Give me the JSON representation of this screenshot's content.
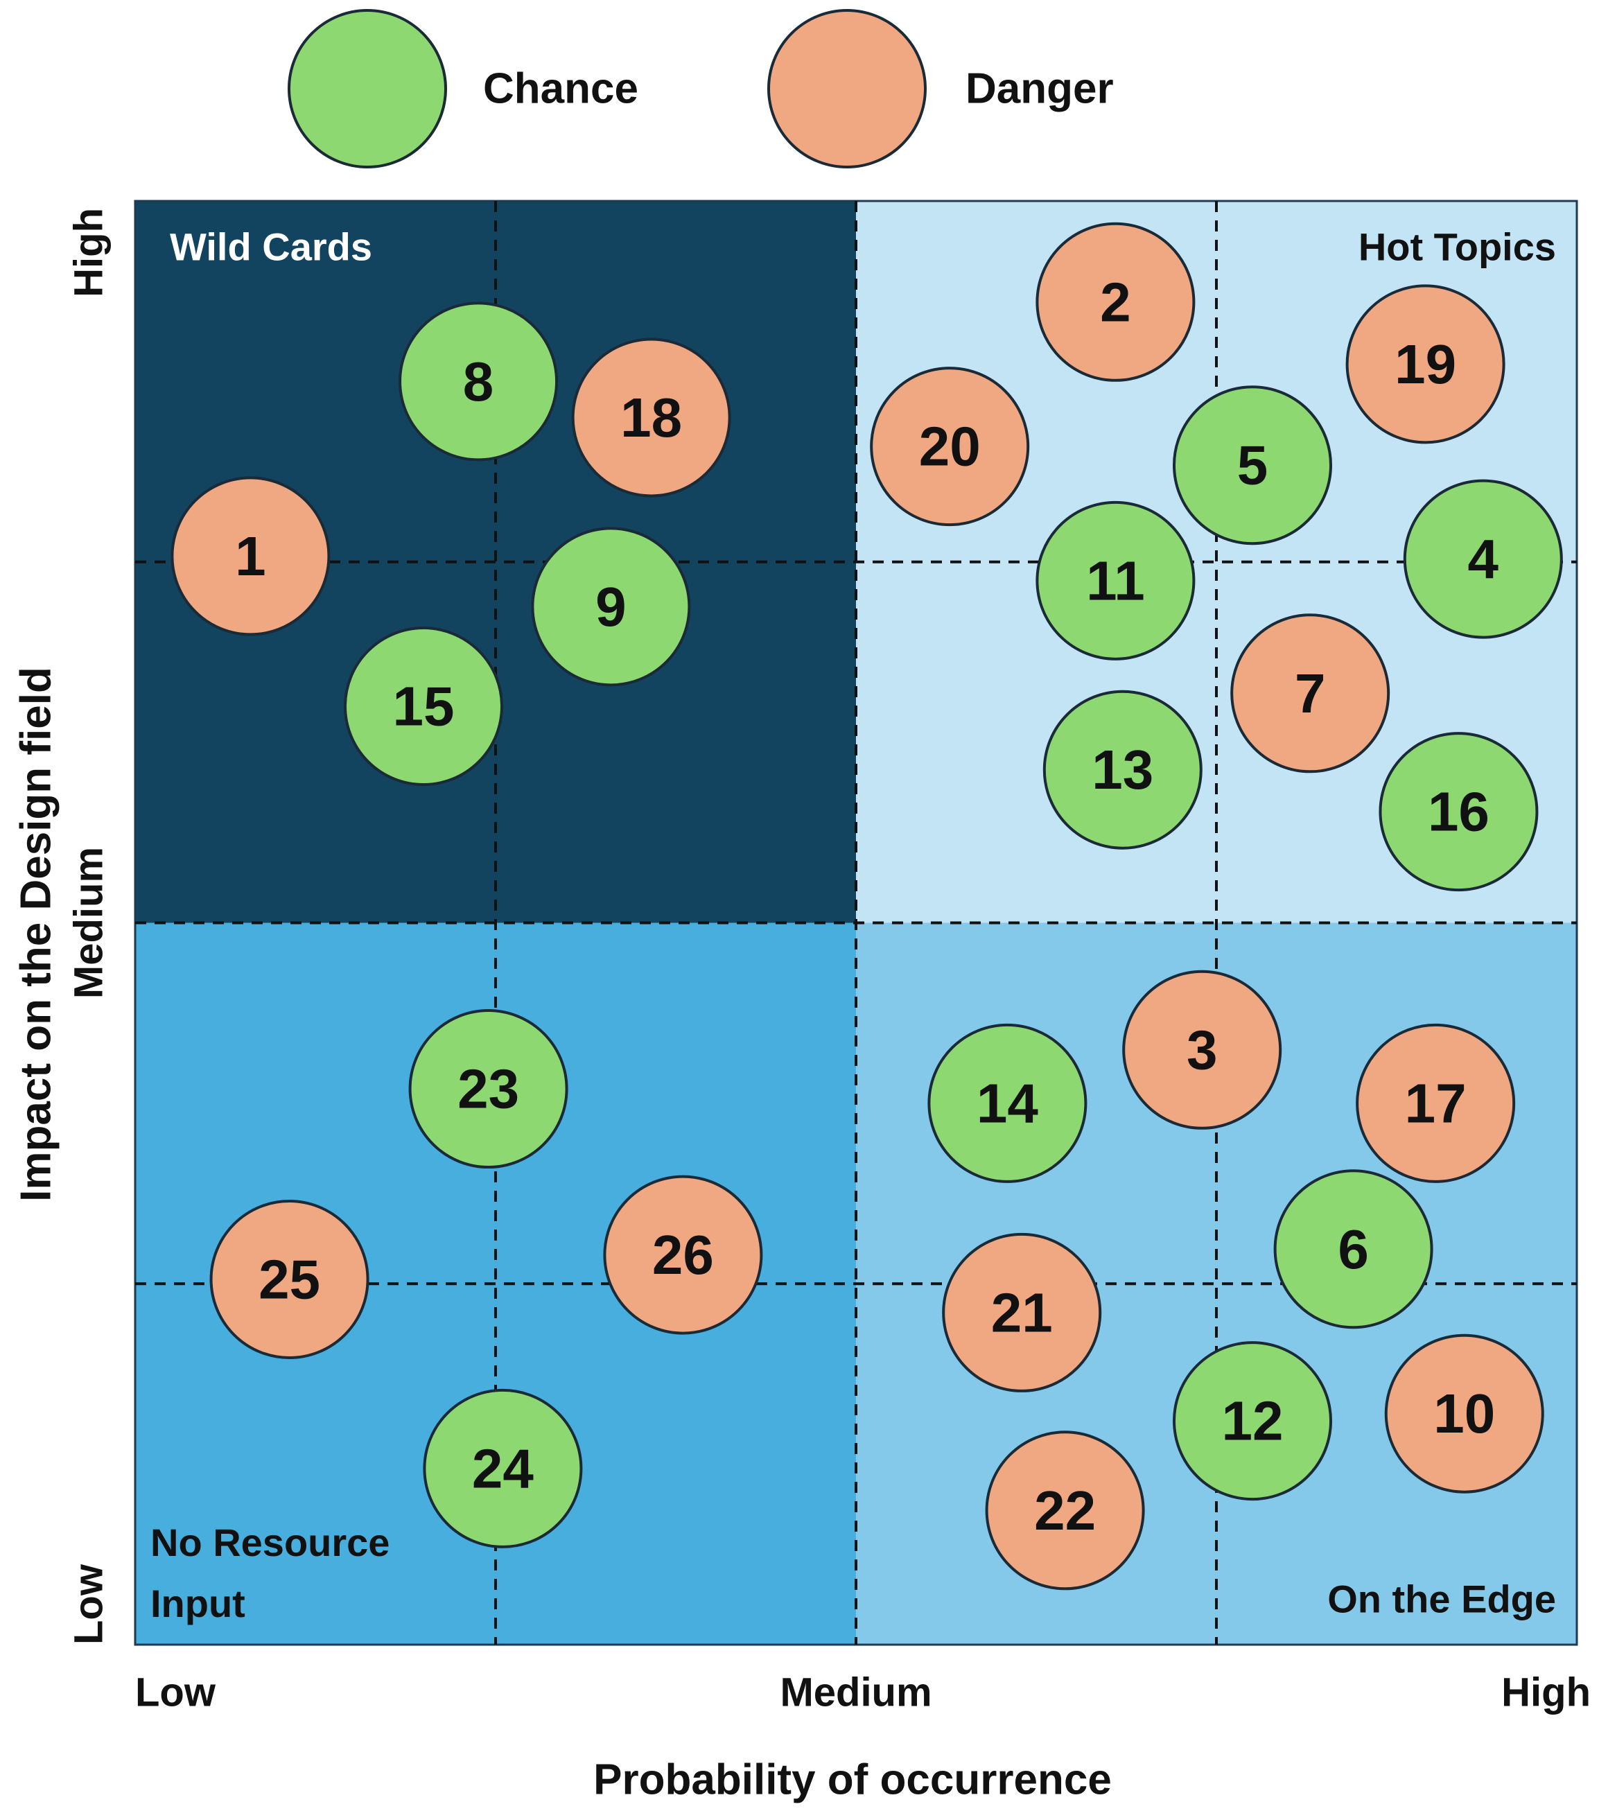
{
  "chart_data": {
    "type": "scatter",
    "xlabel": "Probability of occurrence",
    "ylabel": "Impact on the Design field",
    "xlim": [
      0,
      1
    ],
    "ylim": [
      0,
      1
    ],
    "x_ticks": [
      {
        "value": 0.0,
        "label": "Low"
      },
      {
        "value": 0.5,
        "label": "Medium"
      },
      {
        "value": 1.0,
        "label": "High"
      }
    ],
    "y_ticks": [
      {
        "value": 0.0,
        "label": "Low"
      },
      {
        "value": 0.5,
        "label": "Medium"
      },
      {
        "value": 1.0,
        "label": "High"
      }
    ],
    "gridlines": [
      0.25,
      0.5,
      0.75
    ],
    "quadrants": [
      {
        "name": "Wild Cards",
        "x": [
          0,
          0.5
        ],
        "y": [
          0.5,
          1
        ],
        "color": "#13445f",
        "label_color": "#ffffff",
        "label_pos": "top-left"
      },
      {
        "name": "Hot Topics",
        "x": [
          0.5,
          1
        ],
        "y": [
          0.5,
          1
        ],
        "color": "#c3e4f4",
        "label_color": "#111111",
        "label_pos": "top-right"
      },
      {
        "name": "No Resource Input",
        "x": [
          0,
          0.5
        ],
        "y": [
          0,
          0.5
        ],
        "color": "#47aede",
        "label_color": "#111111",
        "label_pos": "bottom-left"
      },
      {
        "name": "On the Edge",
        "x": [
          0.5,
          1
        ],
        "y": [
          0,
          0.5
        ],
        "color": "#85c9ea",
        "label_color": "#111111",
        "label_pos": "bottom-right"
      }
    ],
    "legend": {
      "position": "top-center",
      "entries": [
        {
          "name": "Chance",
          "color": "#8ed872"
        },
        {
          "name": "Danger",
          "color": "#f0a882"
        }
      ]
    },
    "series": [
      {
        "name": "Chance",
        "color": "#8ed872",
        "points": [
          {
            "label": "8",
            "x": 0.238,
            "y": 0.875
          },
          {
            "label": "9",
            "x": 0.33,
            "y": 0.719
          },
          {
            "label": "15",
            "x": 0.2,
            "y": 0.65
          },
          {
            "label": "5",
            "x": 0.775,
            "y": 0.817
          },
          {
            "label": "11",
            "x": 0.68,
            "y": 0.737
          },
          {
            "label": "4",
            "x": 0.935,
            "y": 0.752
          },
          {
            "label": "13",
            "x": 0.685,
            "y": 0.606
          },
          {
            "label": "16",
            "x": 0.918,
            "y": 0.577
          },
          {
            "label": "23",
            "x": 0.245,
            "y": 0.385
          },
          {
            "label": "24",
            "x": 0.255,
            "y": 0.122
          },
          {
            "label": "14",
            "x": 0.605,
            "y": 0.375
          },
          {
            "label": "6",
            "x": 0.845,
            "y": 0.274
          },
          {
            "label": "12",
            "x": 0.775,
            "y": 0.155
          }
        ]
      },
      {
        "name": "Danger",
        "color": "#f0a882",
        "points": [
          {
            "label": "2",
            "x": 0.68,
            "y": 0.93
          },
          {
            "label": "19",
            "x": 0.895,
            "y": 0.887
          },
          {
            "label": "20",
            "x": 0.565,
            "y": 0.83
          },
          {
            "label": "18",
            "x": 0.358,
            "y": 0.85
          },
          {
            "label": "1",
            "x": 0.08,
            "y": 0.754
          },
          {
            "label": "7",
            "x": 0.815,
            "y": 0.659
          },
          {
            "label": "3",
            "x": 0.74,
            "y": 0.412
          },
          {
            "label": "17",
            "x": 0.902,
            "y": 0.375
          },
          {
            "label": "26",
            "x": 0.38,
            "y": 0.27
          },
          {
            "label": "25",
            "x": 0.107,
            "y": 0.253
          },
          {
            "label": "21",
            "x": 0.615,
            "y": 0.23
          },
          {
            "label": "10",
            "x": 0.922,
            "y": 0.16
          },
          {
            "label": "22",
            "x": 0.645,
            "y": 0.093
          }
        ]
      }
    ]
  }
}
